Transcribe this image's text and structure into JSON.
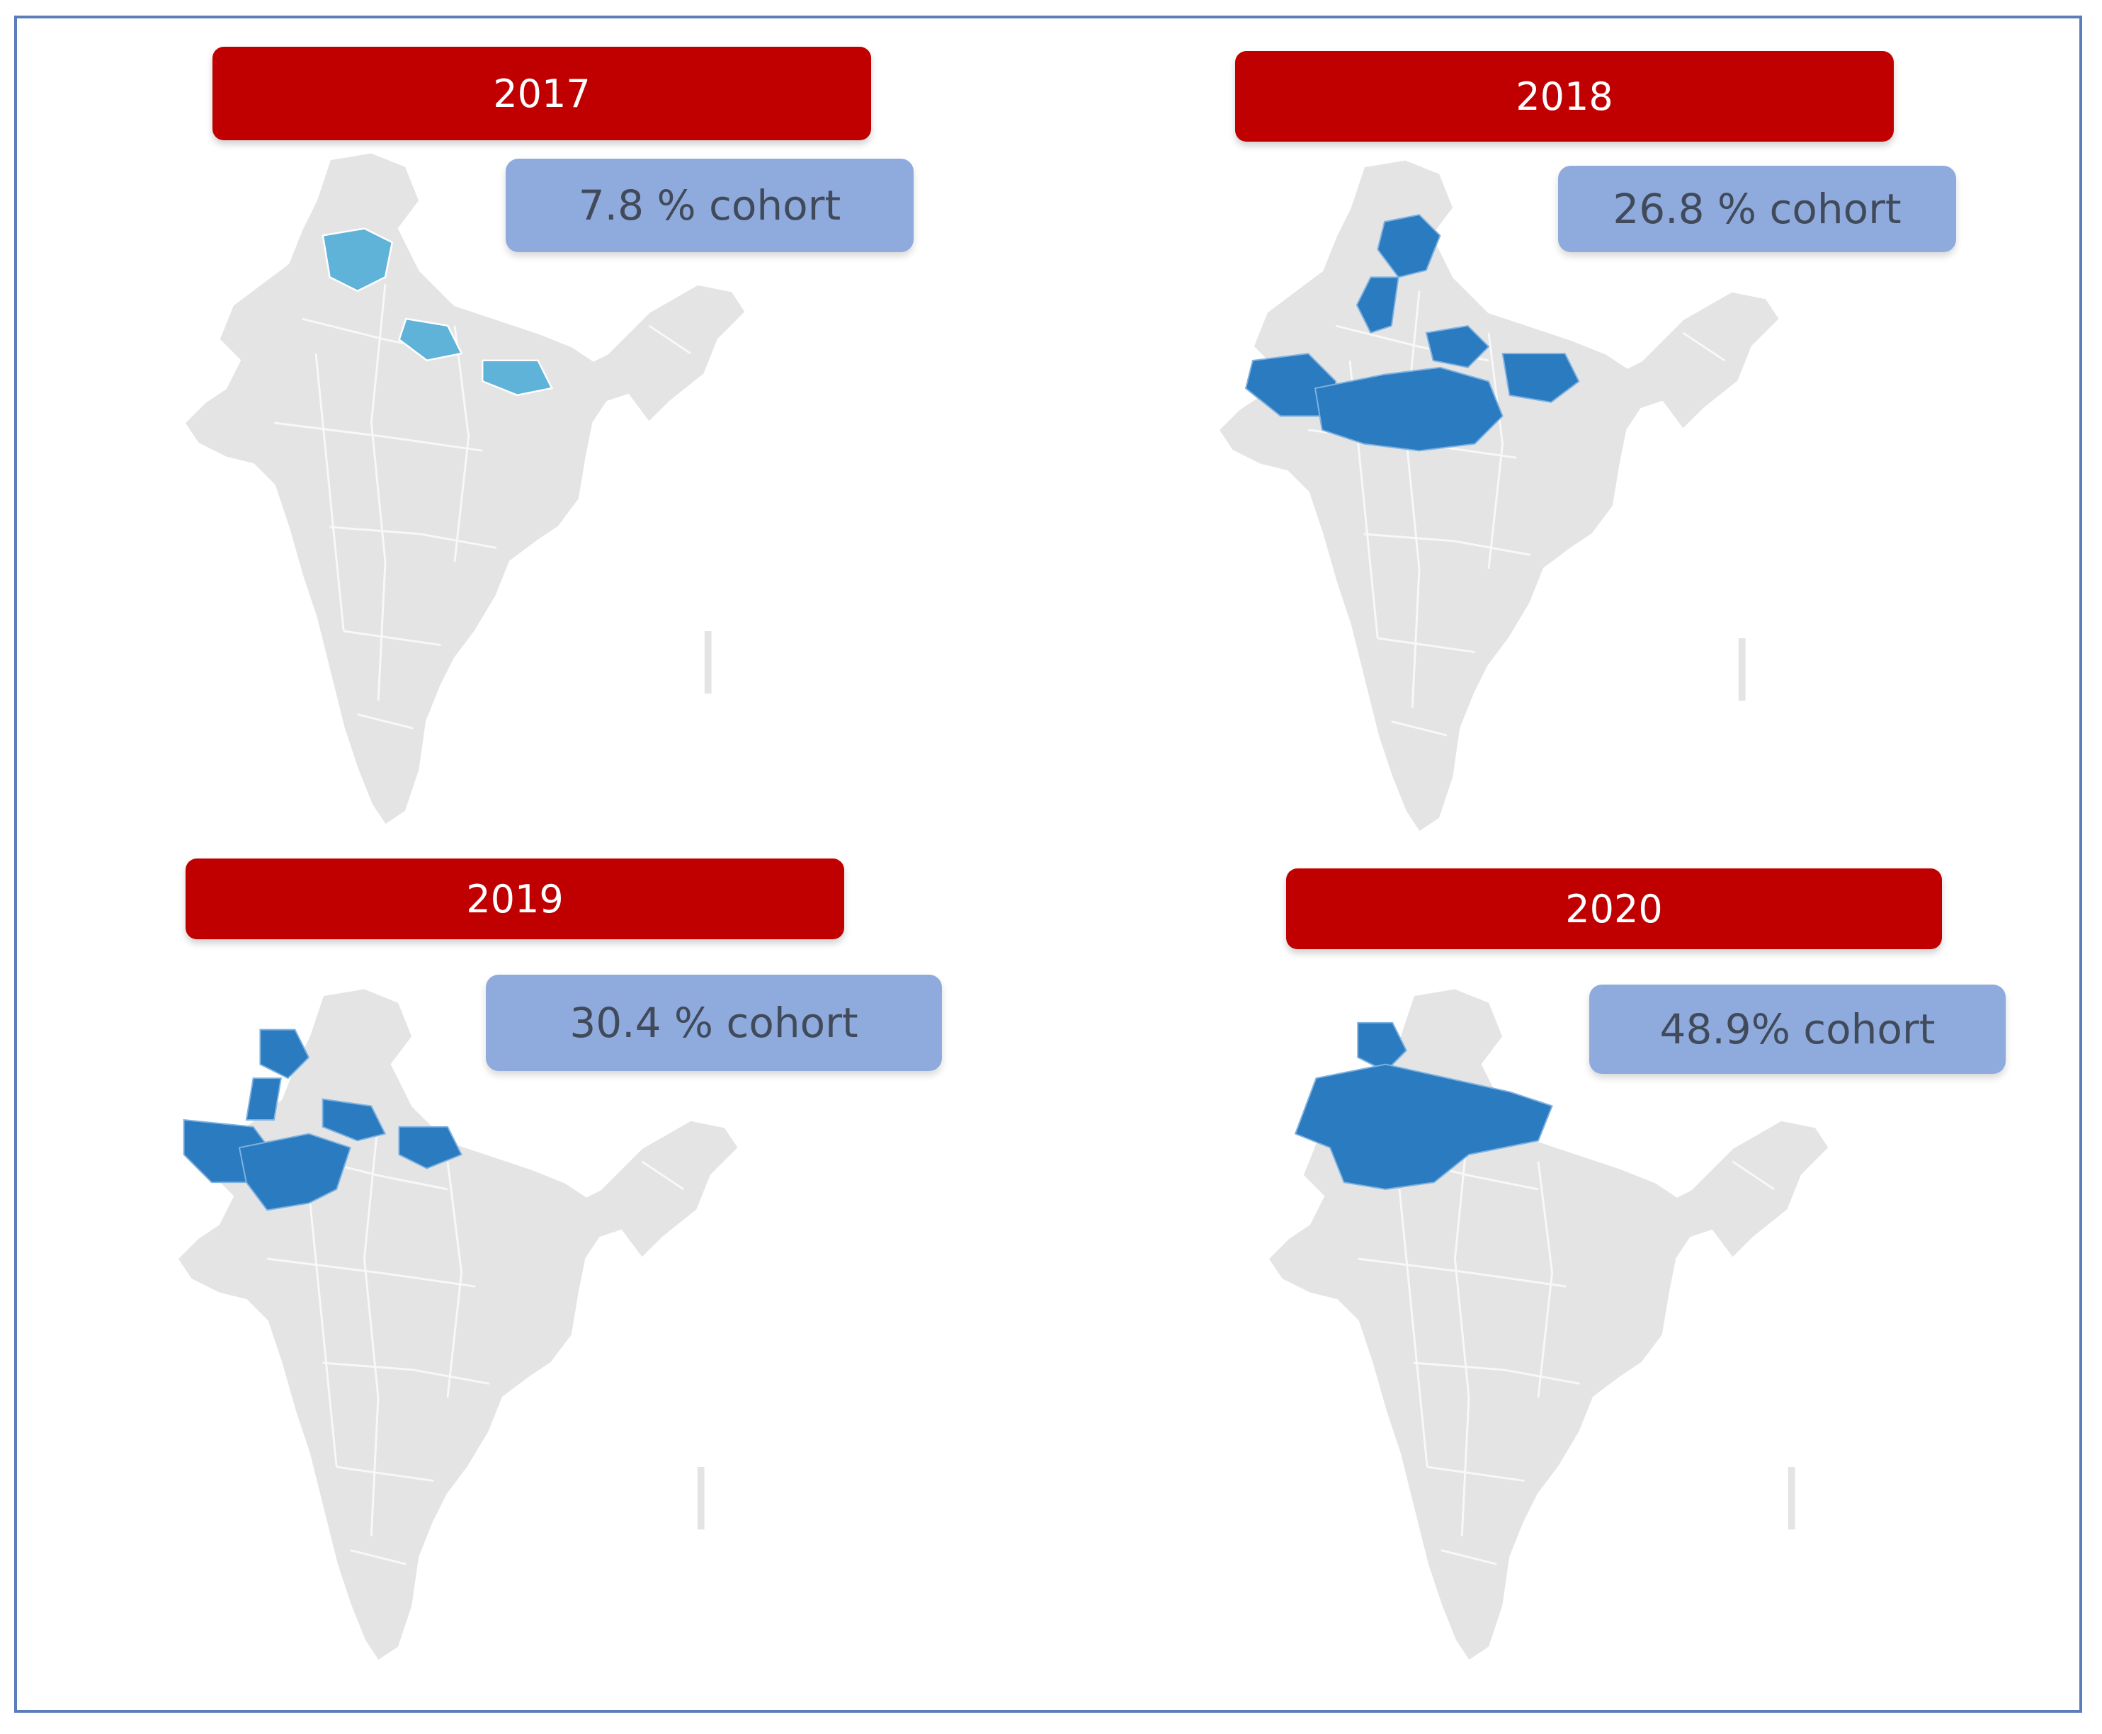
{
  "panels": [
    {
      "year": "2017",
      "cohort": "7.8 % cohort",
      "highlight_color": "#5fb3d9",
      "highlighted_regions": [
        "north-hill-state",
        "north-plains-strip",
        "eastern-plains-strip"
      ]
    },
    {
      "year": "2018",
      "cohort": "26.8 % cohort",
      "highlight_color": "#2b7bc0",
      "highlighted_regions": [
        "north-hill-state",
        "north-west-strip",
        "western-desert",
        "central-belt",
        "north-plains-strip",
        "eastern-plains-strip"
      ]
    },
    {
      "year": "2019",
      "cohort": "30.4 % cohort",
      "highlight_color": "#2b7bc0",
      "highlighted_regions": [
        "north-hill-state",
        "north-west-strip",
        "western-desert",
        "central-belt",
        "north-plains-strip",
        "eastern-plains-strip"
      ]
    },
    {
      "year": "2020",
      "cohort": "48.9% cohort",
      "highlight_color": "#2b7bc0",
      "highlighted_regions": [
        "north-hill-state",
        "north-central-block"
      ]
    }
  ],
  "colors": {
    "title_bar": "#c00000",
    "cohort_box": "#8faadc",
    "map_base": "#e4e4e4",
    "frame": "#5b7db8"
  }
}
